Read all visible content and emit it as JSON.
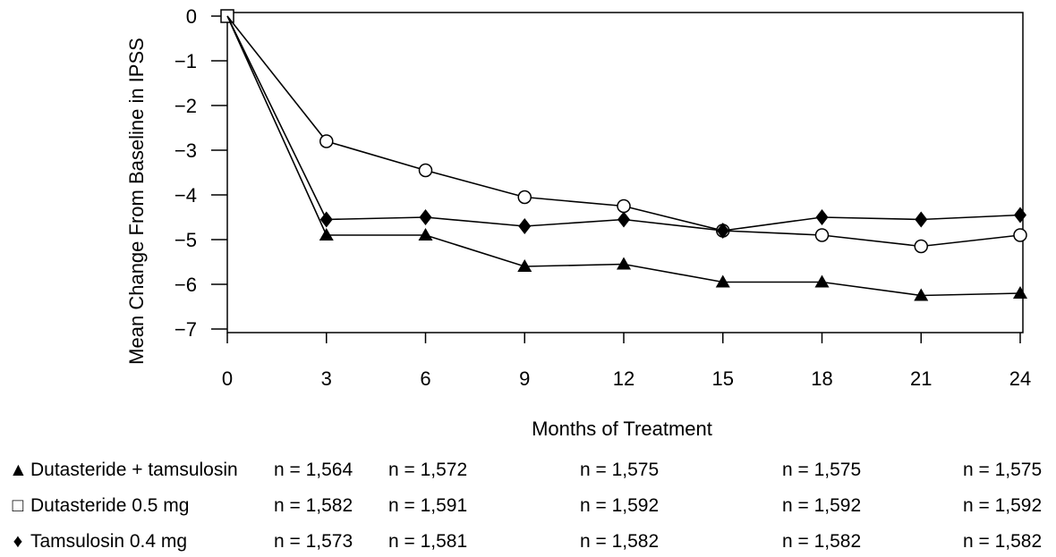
{
  "chart_data": {
    "type": "line",
    "title": "",
    "xlabel": "Months of Treatment",
    "ylabel": "Mean Change From Baseline in IPSS",
    "x": [
      0,
      3,
      6,
      9,
      12,
      15,
      18,
      21,
      24
    ],
    "xlim": [
      0,
      24
    ],
    "ylim": [
      -7,
      0
    ],
    "xticks": [
      "0",
      "3",
      "6",
      "9",
      "12",
      "15",
      "18",
      "21",
      "24"
    ],
    "yticks": [
      "0",
      "−1",
      "−2",
      "−3",
      "−4",
      "−5",
      "−6",
      "−7"
    ],
    "grid": false,
    "series": [
      {
        "name": "Dutasteride + tamsulosin",
        "marker": "triangle",
        "values": [
          0,
          -4.9,
          -4.9,
          -5.6,
          -5.55,
          -5.95,
          -5.95,
          -6.25,
          -6.2
        ]
      },
      {
        "name": "Dutasteride 0.5 mg",
        "marker": "circle-open",
        "values": [
          0,
          -2.8,
          -3.45,
          -4.05,
          -4.25,
          -4.8,
          -4.9,
          -5.15,
          -4.9
        ]
      },
      {
        "name": "Tamsulosin 0.4 mg",
        "marker": "diamond",
        "values": [
          0,
          -4.55,
          -4.5,
          -4.7,
          -4.55,
          -4.8,
          -4.5,
          -4.55,
          -4.45
        ]
      }
    ]
  },
  "legend_table": {
    "rows": [
      {
        "symbol": "▲",
        "label": "Dutasteride + tamsulosin",
        "counts": [
          "n = 1,564",
          "n = 1,572",
          "n = 1,575",
          "n = 1,575",
          "n = 1,575"
        ]
      },
      {
        "symbol": "□",
        "label": "Dutasteride 0.5 mg",
        "counts": [
          "n = 1,582",
          "n = 1,591",
          "n = 1,592",
          "n = 1,592",
          "n = 1,592"
        ]
      },
      {
        "symbol": "♦",
        "label": "Tamsulosin 0.4 mg",
        "counts": [
          "n = 1,573",
          "n = 1,581",
          "n = 1,582",
          "n = 1,582",
          "n = 1,582"
        ]
      }
    ]
  }
}
